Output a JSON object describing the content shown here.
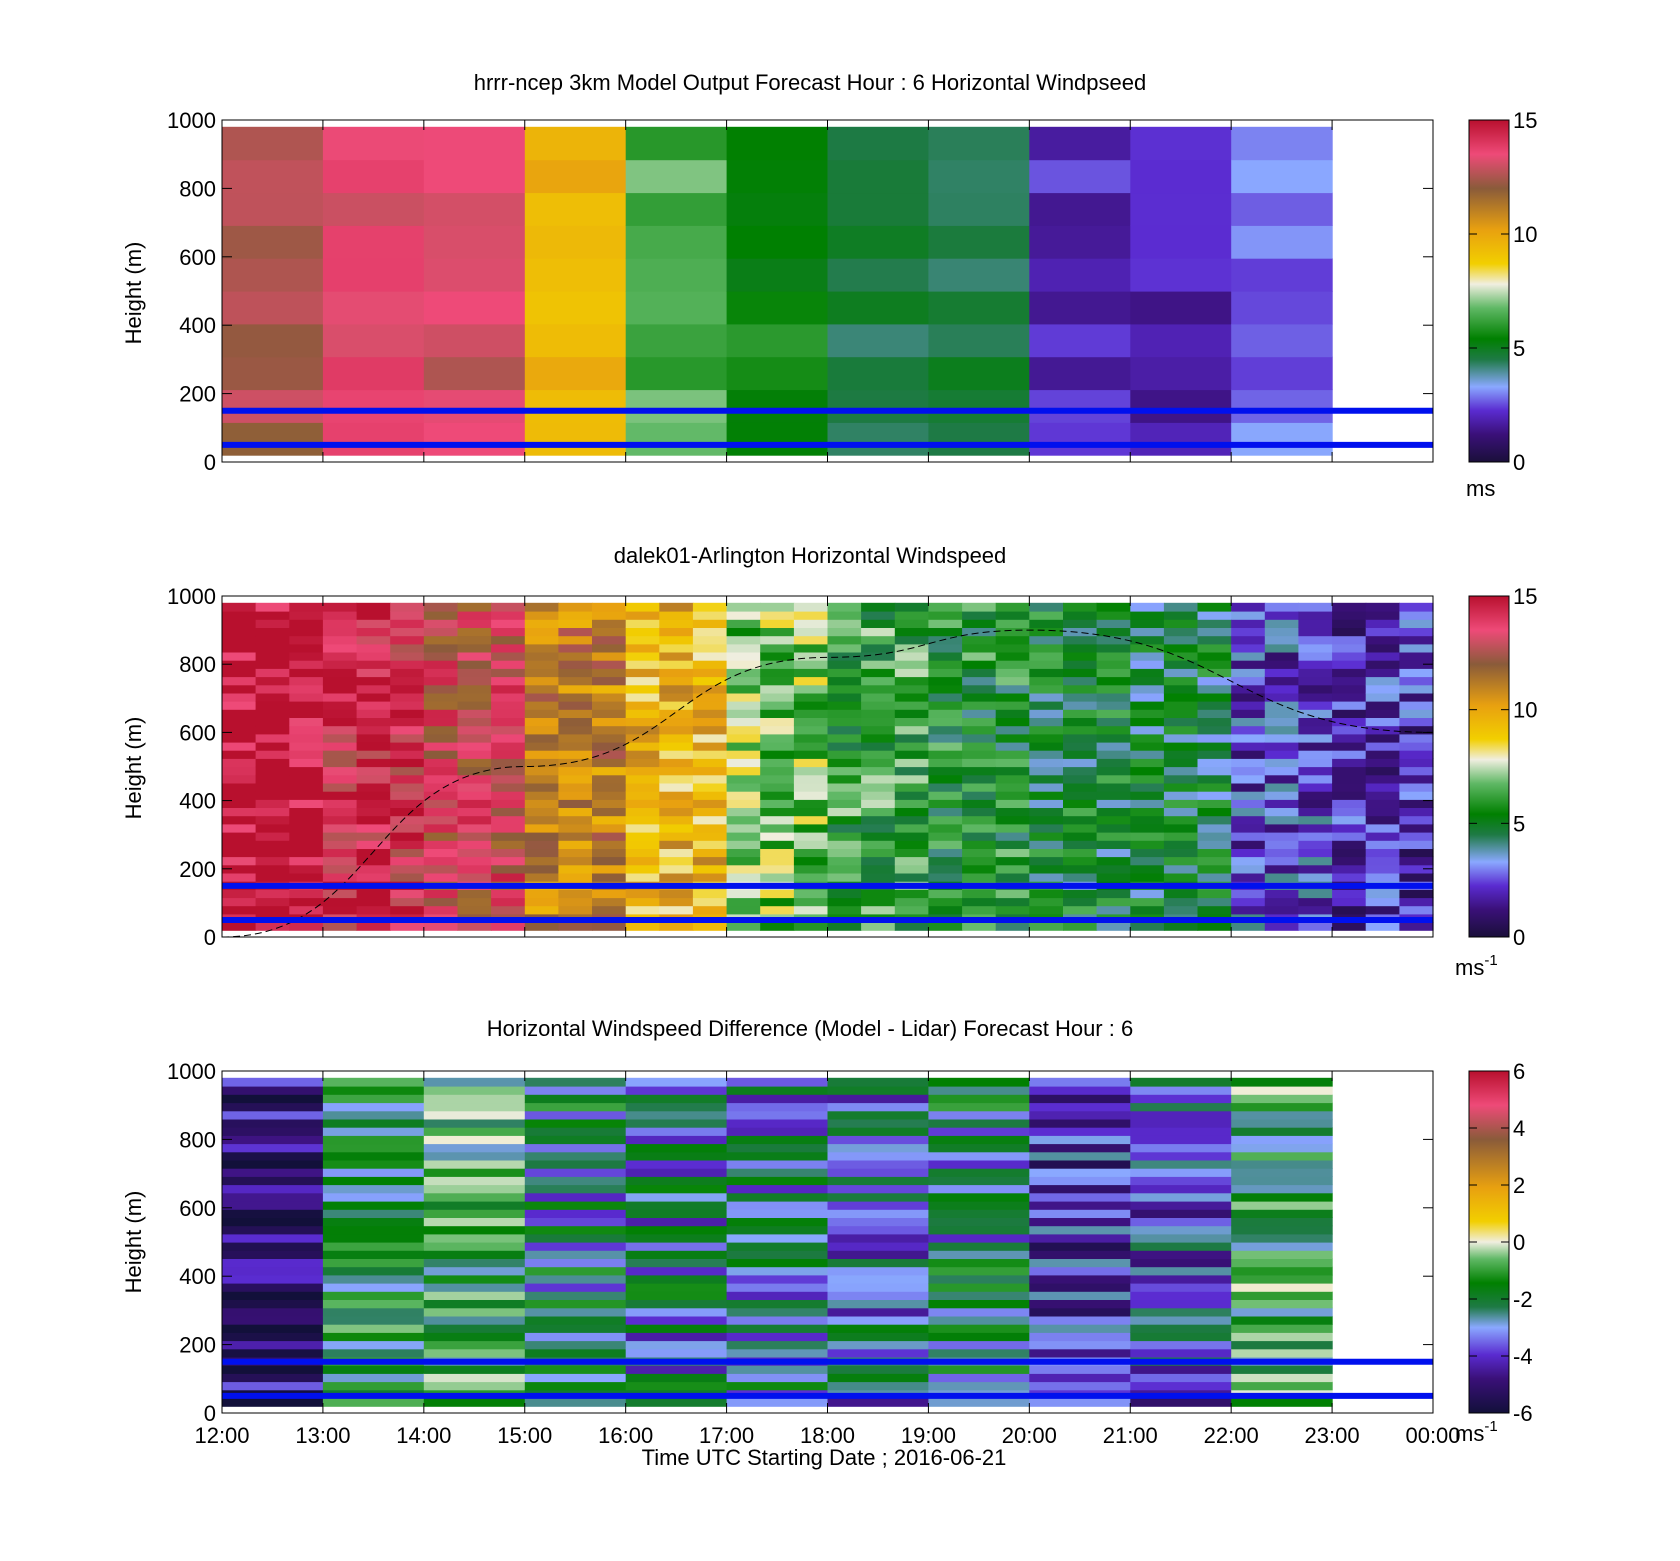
{
  "chart_data": [
    {
      "type": "heatmap",
      "title": "hrrr-ncep 3km Model Output   Forecast Hour : 6 Horizontal Windpseed",
      "ylabel": "Height (m)",
      "xlabel": "",
      "ylim": [
        0,
        1000
      ],
      "yticks": [
        "0",
        "200",
        "400",
        "600",
        "800",
        "1000"
      ],
      "colorbar": {
        "ticks": [
          "0",
          "5",
          "10",
          "15"
        ],
        "range": [
          0,
          15
        ],
        "unit": "ms",
        "unit_sup": "",
        "palette": "wind"
      },
      "hour_columns": [
        {
          "x": "12:00",
          "speed": 12.5
        },
        {
          "x": "13:00",
          "speed": 13.5
        },
        {
          "x": "14:00",
          "speed": 13.0
        },
        {
          "x": "15:00",
          "speed": 9.5
        },
        {
          "x": "16:00",
          "speed": 6.5
        },
        {
          "x": "17:00",
          "speed": 5.5
        },
        {
          "x": "18:00",
          "speed": 4.5
        },
        {
          "x": "19:00",
          "speed": 4.5
        },
        {
          "x": "20:00",
          "speed": 2.0
        },
        {
          "x": "21:00",
          "speed": 1.8
        },
        {
          "x": "22:00",
          "speed": 3.0
        },
        {
          "x": "23:00",
          "speed": null
        }
      ],
      "reference_lines_m": [
        150,
        50
      ]
    },
    {
      "type": "heatmap",
      "title": "dalek01-Arlington  Horizontal Windspeed",
      "ylabel": "Height (m)",
      "xlabel": "",
      "ylim": [
        0,
        1000
      ],
      "yticks": [
        "0",
        "200",
        "400",
        "600",
        "800",
        "1000"
      ],
      "colorbar": {
        "ticks": [
          "0",
          "5",
          "10",
          "15"
        ],
        "range": [
          0,
          15
        ],
        "unit": "ms",
        "unit_sup": "-1",
        "palette": "wind"
      },
      "hour_columns": [
        {
          "x": "12:00",
          "speed": 15.0
        },
        {
          "x": "13:00",
          "speed": 14.0
        },
        {
          "x": "14:00",
          "speed": 13.0
        },
        {
          "x": "15:00",
          "speed": 11.0
        },
        {
          "x": "16:00",
          "speed": 9.5
        },
        {
          "x": "17:00",
          "speed": 7.0
        },
        {
          "x": "18:00",
          "speed": 6.0
        },
        {
          "x": "19:00",
          "speed": 5.5
        },
        {
          "x": "20:00",
          "speed": 5.0
        },
        {
          "x": "21:00",
          "speed": 4.8
        },
        {
          "x": "22:00",
          "speed": 2.5
        },
        {
          "x": "23:00",
          "speed": 2.0
        }
      ],
      "boundary_layer_curve": {
        "x": [
          "12:00",
          "15:00",
          "18:00",
          "20:00",
          "00:00"
        ],
        "y": [
          0,
          500,
          820,
          900,
          600
        ]
      },
      "reference_lines_m": [
        150,
        50
      ]
    },
    {
      "type": "heatmap",
      "title": "Horizontal Windspeed Difference (Model - Lidar) Forecast Hour : 6",
      "ylabel": "Height (m)",
      "xlabel": "Time UTC  Starting Date ; 2016-06-21",
      "ylim": [
        0,
        1000
      ],
      "yticks": [
        "0",
        "200",
        "400",
        "600",
        "800",
        "1000"
      ],
      "xticks": [
        "12:00",
        "13:00",
        "14:00",
        "15:00",
        "16:00",
        "17:00",
        "18:00",
        "19:00",
        "20:00",
        "21:00",
        "22:00",
        "23:00",
        "00:00"
      ],
      "colorbar": {
        "ticks": [
          "-6",
          "-4",
          "-2",
          "0",
          "2",
          "4",
          "6"
        ],
        "range": [
          -6,
          6
        ],
        "unit": "ms",
        "unit_sup": "-1",
        "palette": "diff"
      },
      "hour_columns": [
        {
          "x": "12:00",
          "diff": -5.0
        },
        {
          "x": "13:00",
          "diff": -2.0
        },
        {
          "x": "14:00",
          "diff": -1.5
        },
        {
          "x": "15:00",
          "diff": -2.5
        },
        {
          "x": "16:00",
          "diff": -2.8
        },
        {
          "x": "17:00",
          "diff": -2.8
        },
        {
          "x": "18:00",
          "diff": -3.0
        },
        {
          "x": "19:00",
          "diff": -2.5
        },
        {
          "x": "20:00",
          "diff": -4.0
        },
        {
          "x": "21:00",
          "diff": -3.5
        },
        {
          "x": "22:00",
          "diff": -1.5
        },
        {
          "x": "23:00",
          "diff": null
        }
      ],
      "reference_lines_m": [
        150,
        50
      ]
    }
  ]
}
